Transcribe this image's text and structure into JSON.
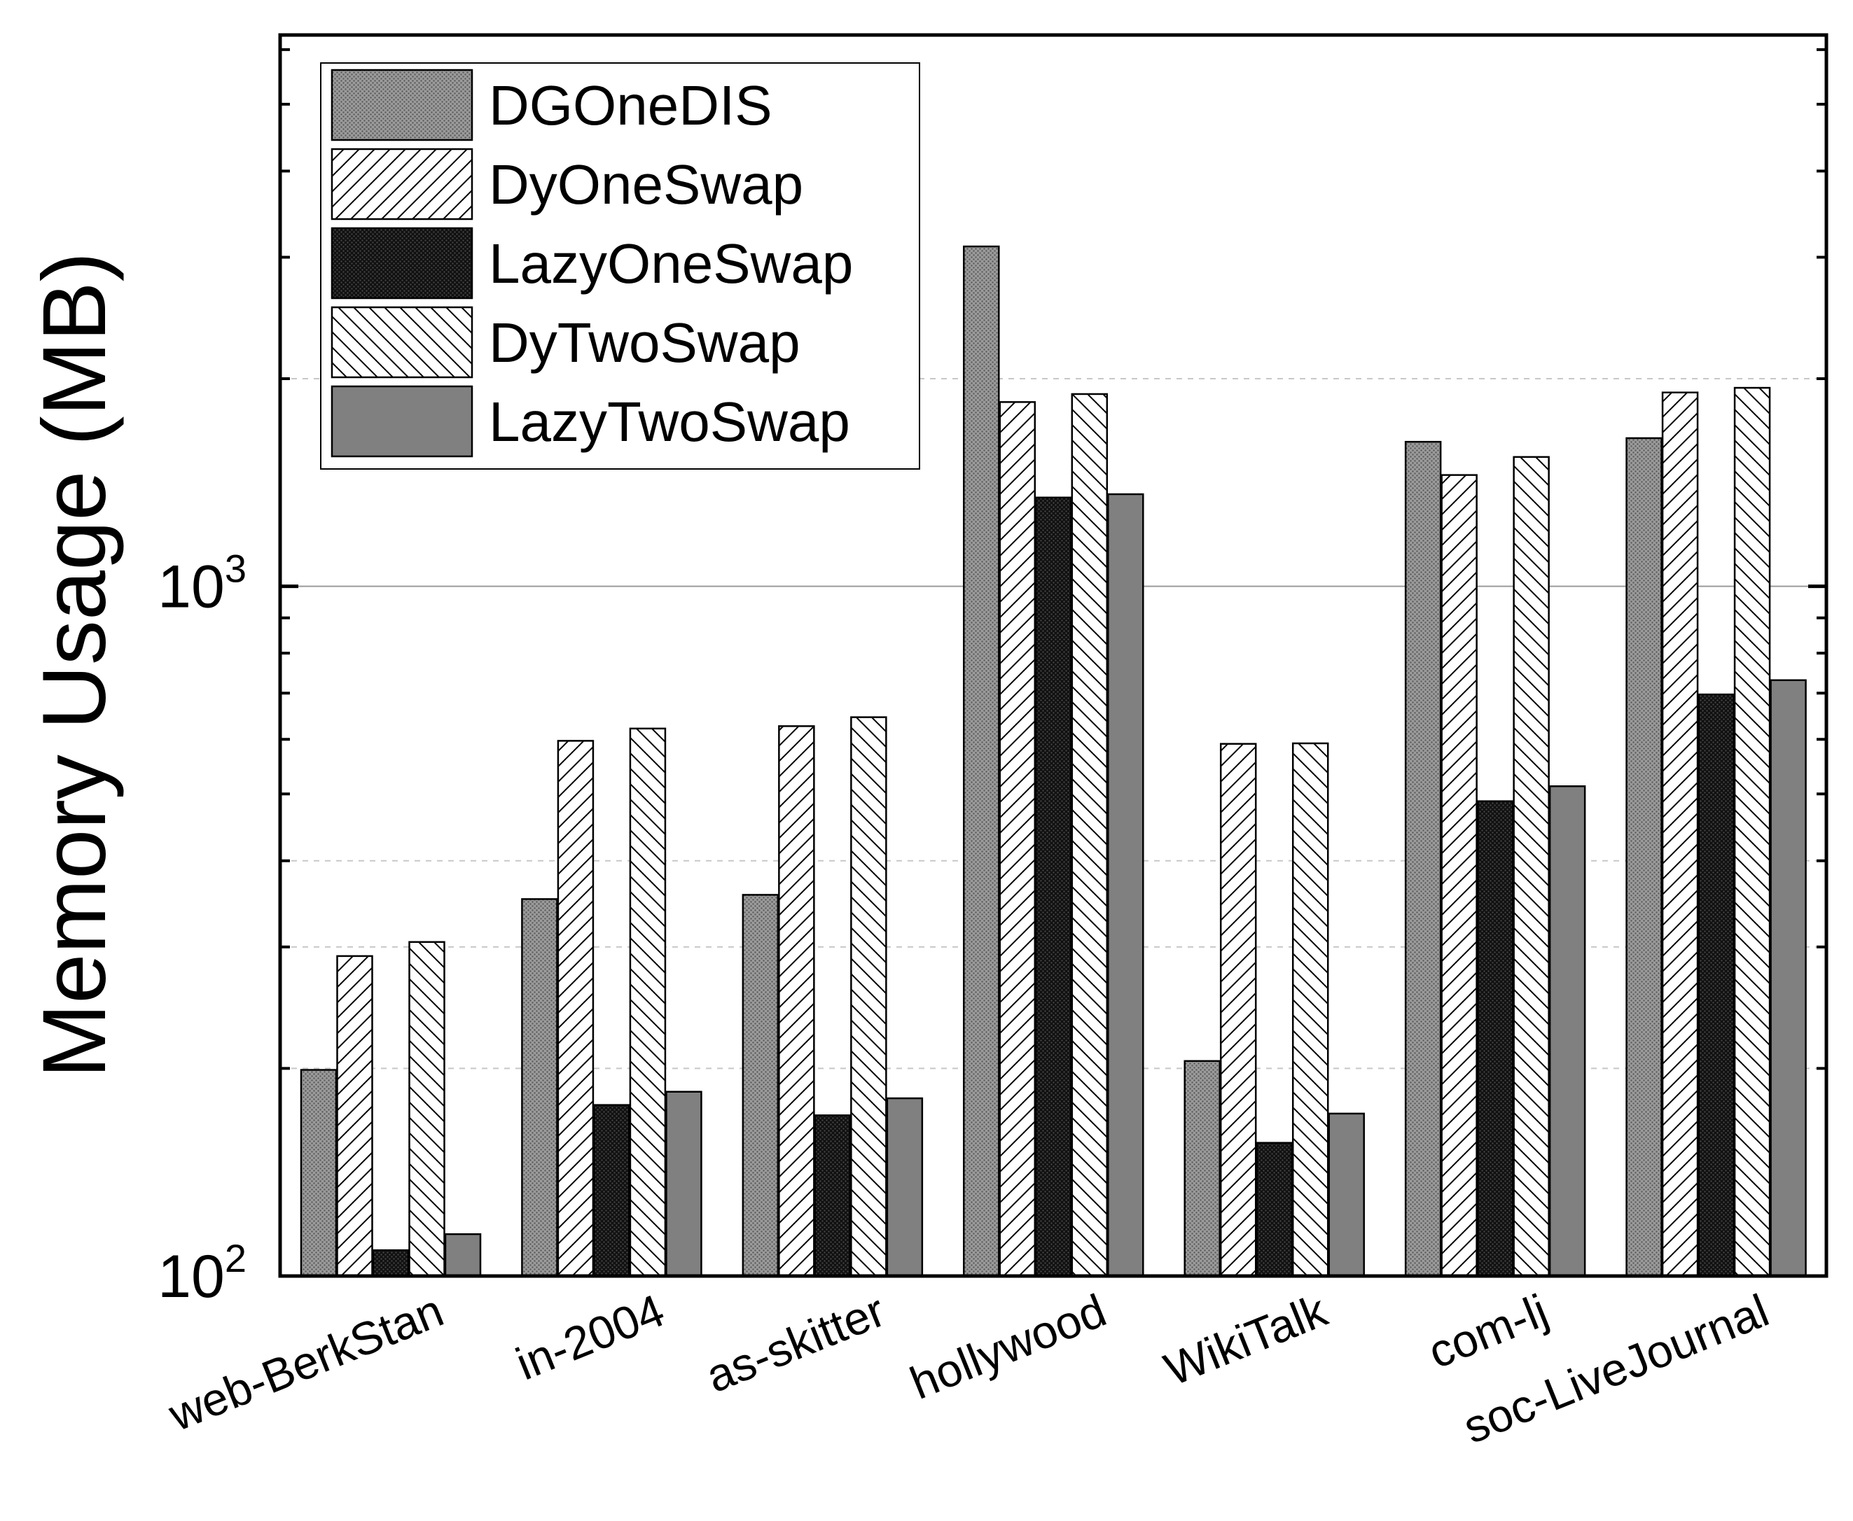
{
  "chart_data": {
    "type": "bar",
    "title": "",
    "xlabel": "",
    "ylabel": "Memory Usage (MB)",
    "yscale": "log",
    "ylim": [
      100,
      6300
    ],
    "y_ticks": [
      {
        "value": 100,
        "base": "10",
        "exp": "2"
      },
      {
        "value": 1000,
        "base": "10",
        "exp": "3"
      }
    ],
    "y_gridlines": [
      200,
      300,
      400,
      1000,
      2000
    ],
    "legend_position": "top-left",
    "categories": [
      "web-BerkStan",
      "in-2004",
      "as-skitter",
      "hollywood",
      "WikiTalk",
      "com-lj",
      "soc-LiveJournal"
    ],
    "series": [
      {
        "name": "DGOneDIS",
        "pattern": "dots",
        "color": "#8c8c8c",
        "values": [
          199,
          352,
          357,
          3110,
          205,
          1620,
          1640
        ]
      },
      {
        "name": "DyOneSwap",
        "pattern": "hatch-forward",
        "color": "#ffffff",
        "values": [
          291,
          597,
          627,
          1850,
          591,
          1450,
          1910
        ]
      },
      {
        "name": "LazyOneSwap",
        "pattern": "dots-dark",
        "color": "#151515",
        "values": [
          109,
          177,
          171,
          1345,
          156,
          488,
          697
        ]
      },
      {
        "name": "DyTwoSwap",
        "pattern": "hatch-back",
        "color": "#ffffff",
        "values": [
          305,
          622,
          646,
          1900,
          592,
          1540,
          1940
        ]
      },
      {
        "name": "LazyTwoSwap",
        "pattern": "solid",
        "color": "#7f7f7f",
        "values": [
          115,
          185,
          181,
          1360,
          172,
          513,
          731
        ]
      }
    ]
  }
}
